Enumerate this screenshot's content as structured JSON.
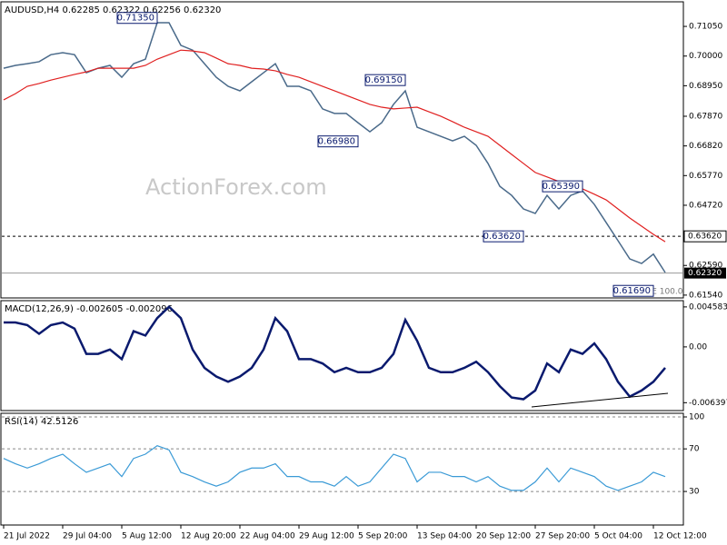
{
  "chart_data": [
    {
      "type": "line",
      "title": "AUDUSD,H4  0.62285 0.62322 0.62256 0.62320",
      "watermark": "ActionForex.com",
      "x": [
        0,
        1,
        2,
        3,
        4,
        5,
        6,
        7,
        8,
        9,
        10,
        11,
        12,
        13,
        14,
        15,
        16,
        17,
        18,
        19,
        20,
        21,
        22,
        23,
        24,
        25,
        26,
        27,
        28,
        29,
        30,
        31,
        32,
        33,
        34,
        35,
        36,
        37,
        38,
        39,
        40,
        41,
        42,
        43,
        44,
        45,
        46,
        47,
        48,
        49,
        50,
        51,
        52,
        53,
        54,
        55,
        56
      ],
      "xlim": [
        0,
        57.5
      ],
      "xticks": [
        {
          "value": 0,
          "label": "21 Jul 2022"
        },
        {
          "value": 5,
          "label": "29 Jul 04:00"
        },
        {
          "value": 10,
          "label": "5 Aug 12:00"
        },
        {
          "value": 15,
          "label": "12 Aug 20:00"
        },
        {
          "value": 20,
          "label": "22 Aug 04:00"
        },
        {
          "value": 25,
          "label": "29 Aug 12:00"
        },
        {
          "value": 30,
          "label": "5 Sep 20:00"
        },
        {
          "value": 35,
          "label": "13 Sep 04:00"
        },
        {
          "value": 40,
          "label": "20 Sep 12:00"
        },
        {
          "value": 45,
          "label": "27 Sep 20:00"
        },
        {
          "value": 50,
          "label": "5 Oct 04:00"
        },
        {
          "value": 55,
          "label": "12 Oct 12:00"
        }
      ],
      "ylim": [
        0.6144,
        0.7192
      ],
      "yticks": [
        {
          "value": 0.7105,
          "label": "0.71050"
        },
        {
          "value": 0.7,
          "label": "0.70000"
        },
        {
          "value": 0.6895,
          "label": "0.68950"
        },
        {
          "value": 0.6787,
          "label": "0.67870"
        },
        {
          "value": 0.6682,
          "label": "0.66820"
        },
        {
          "value": 0.6577,
          "label": "0.65770"
        },
        {
          "value": 0.6472,
          "label": "0.64720"
        },
        {
          "value": 0.6259,
          "label": "0.62590"
        },
        {
          "value": 0.6154,
          "label": "0.61540"
        }
      ],
      "series": [
        {
          "name": "AUDUSD",
          "color": "#4a6a8a",
          "values": [
            0.6957,
            0.6967,
            0.6973,
            0.698,
            0.7005,
            0.7012,
            0.7005,
            0.6941,
            0.6957,
            0.6967,
            0.6925,
            0.6973,
            0.6989,
            0.7118,
            0.7118,
            0.7038,
            0.7021,
            0.6973,
            0.6925,
            0.6893,
            0.6877,
            0.6909,
            0.6941,
            0.6973,
            0.6893,
            0.6893,
            0.6877,
            0.6813,
            0.6797,
            0.6797,
            0.6764,
            0.6732,
            0.6764,
            0.6829,
            0.6877,
            0.6748,
            0.6732,
            0.6716,
            0.67,
            0.6716,
            0.6684,
            0.662,
            0.6539,
            0.6507,
            0.6459,
            0.6443,
            0.6507,
            0.6459,
            0.6507,
            0.6523,
            0.6475,
            0.6411,
            0.6347,
            0.6282,
            0.6266,
            0.6299,
            0.6234
          ]
        },
        {
          "name": "MA",
          "color": "#e02020",
          "values": [
            0.6845,
            0.6867,
            0.6893,
            0.6903,
            0.6915,
            0.6925,
            0.6935,
            0.6944,
            0.6957,
            0.6957,
            0.6957,
            0.6957,
            0.6967,
            0.6989,
            0.7005,
            0.7021,
            0.7018,
            0.7012,
            0.6993,
            0.6973,
            0.6967,
            0.6957,
            0.6954,
            0.6948,
            0.6935,
            0.6925,
            0.6909,
            0.6893,
            0.6877,
            0.6861,
            0.6845,
            0.6829,
            0.6819,
            0.6813,
            0.6816,
            0.6819,
            0.6803,
            0.6787,
            0.6768,
            0.6748,
            0.6732,
            0.6716,
            0.6684,
            0.6652,
            0.662,
            0.6588,
            0.6572,
            0.6556,
            0.6543,
            0.653,
            0.6511,
            0.6491,
            0.6459,
            0.6427,
            0.6398,
            0.6369,
            0.6343
          ]
        }
      ],
      "annotations": [
        {
          "x": 13,
          "value": 0.7135,
          "label": "0.71350"
        },
        {
          "x": 34,
          "value": 0.6915,
          "label": "0.69150"
        },
        {
          "x": 30,
          "value": 0.6698,
          "label": "0.66980"
        },
        {
          "x": 44,
          "value": 0.6362,
          "label": "0.63620"
        },
        {
          "x": 49,
          "value": 0.6539,
          "label": "0.65390"
        },
        {
          "x": 55,
          "value": 0.6169,
          "label": "0.61690"
        }
      ],
      "fe_label": "FE 100.0",
      "level": {
        "value": 0.6362,
        "label": "0.63620"
      },
      "last": {
        "value": 0.6232,
        "label": "0.62320"
      }
    },
    {
      "type": "line",
      "title": "MACD(12,26,9) -0.002605 -0.002096",
      "x": [
        0,
        1,
        2,
        3,
        4,
        5,
        6,
        7,
        8,
        9,
        10,
        11,
        12,
        13,
        14,
        15,
        16,
        17,
        18,
        19,
        20,
        21,
        22,
        23,
        24,
        25,
        26,
        27,
        28,
        29,
        30,
        31,
        32,
        33,
        34,
        35,
        36,
        37,
        38,
        39,
        40,
        41,
        42,
        43,
        44,
        45,
        46,
        47,
        48,
        49,
        50,
        51,
        52,
        53,
        54,
        55,
        56
      ],
      "xlim": [
        0,
        57.5
      ],
      "ylim": [
        -0.0073,
        0.0053
      ],
      "yticks": [
        0.004583,
        {
          "value": 0,
          "label": "0.00"
        },
        -0.006397
      ],
      "series": [
        {
          "name": "MACD",
          "color": "#0a1a6e",
          "values": [
            0.0028,
            0.0028,
            0.0025,
            0.0015,
            0.0025,
            0.0028,
            0.0021,
            -0.0008,
            -0.0008,
            -0.0003,
            -0.0014,
            0.0018,
            0.0013,
            0.0033,
            0.0046,
            0.0033,
            -0.0003,
            -0.0024,
            -0.0034,
            -0.004,
            -0.0034,
            -0.0024,
            -0.0003,
            0.0033,
            0.0018,
            -0.0014,
            -0.0014,
            -0.0019,
            -0.0029,
            -0.0024,
            -0.0029,
            -0.0029,
            -0.0024,
            -0.0008,
            0.0031,
            0.0007,
            -0.0024,
            -0.0029,
            -0.0029,
            -0.0024,
            -0.0017,
            -0.0029,
            -0.0045,
            -0.0058,
            -0.006,
            -0.005,
            -0.0019,
            -0.0029,
            -0.0003,
            -0.0008,
            0.0004,
            -0.0014,
            -0.004,
            -0.0057,
            -0.005,
            -0.004,
            -0.0024
          ]
        }
      ]
    },
    {
      "type": "line",
      "title": "RSI(14) 42.5126",
      "x": [
        0,
        1,
        2,
        3,
        4,
        5,
        6,
        7,
        8,
        9,
        10,
        11,
        12,
        13,
        14,
        15,
        16,
        17,
        18,
        19,
        20,
        21,
        22,
        23,
        24,
        25,
        26,
        27,
        28,
        29,
        30,
        31,
        32,
        33,
        34,
        35,
        36,
        37,
        38,
        39,
        40,
        41,
        42,
        43,
        44,
        45,
        46,
        47,
        48,
        49,
        50,
        51,
        52,
        53,
        54,
        55,
        56
      ],
      "xlim": [
        0,
        57.5
      ],
      "ylim": [
        -1.5,
        103.4
      ],
      "yticks": [
        100,
        70,
        30
      ],
      "grid": true,
      "series": [
        {
          "name": "RSI",
          "color": "#3a9ad6",
          "values": [
            61,
            56,
            52,
            56,
            61,
            65,
            56,
            48,
            52,
            56,
            44,
            61,
            65,
            73,
            69,
            48,
            44,
            39,
            35,
            39,
            48,
            52,
            52,
            56,
            44,
            44,
            39,
            39,
            35,
            44,
            35,
            39,
            52,
            65,
            61,
            39,
            48,
            48,
            44,
            44,
            39,
            44,
            35,
            31,
            31,
            39,
            52,
            39,
            52,
            48,
            44,
            35,
            31,
            35,
            39,
            48,
            44
          ]
        }
      ]
    }
  ]
}
